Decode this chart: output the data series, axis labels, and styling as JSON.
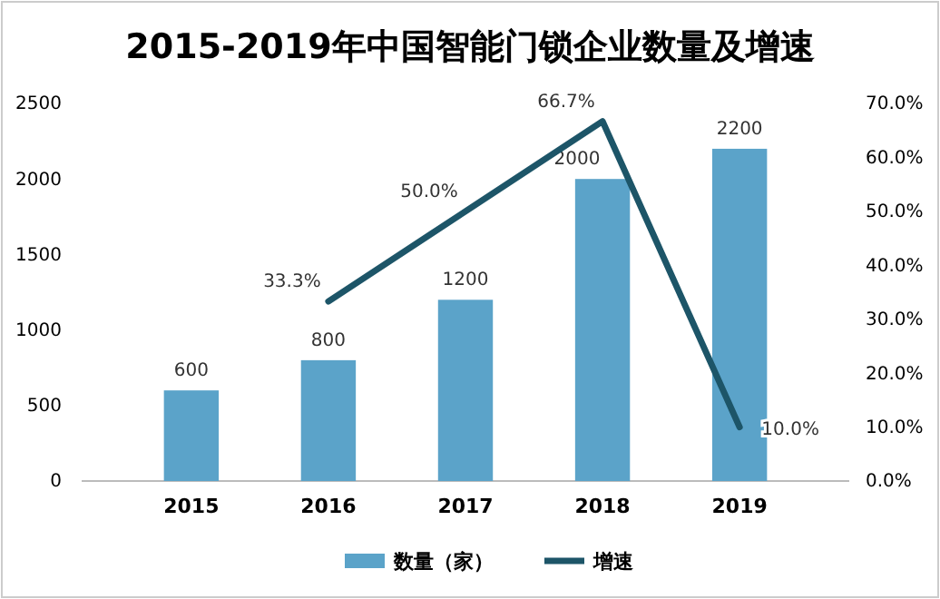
{
  "chart_data": {
    "type": "bar",
    "title": "2015-2019年中国智能门锁企业数量及增速",
    "categories": [
      "2015",
      "2016",
      "2017",
      "2018",
      "2019"
    ],
    "series": [
      {
        "name": "数量（家）",
        "color": "#5ba3c9",
        "values": [
          600,
          800,
          1200,
          2000,
          2200
        ],
        "value_labels": [
          "600",
          "800",
          "1200",
          "2000",
          "2200"
        ]
      },
      {
        "name": "增速",
        "type": "line",
        "axis": "y2",
        "color": "#1d5568",
        "values": [
          null,
          33.3,
          50.0,
          66.7,
          10.0
        ],
        "value_labels": [
          null,
          "33.3%",
          "50.0%",
          "66.7%",
          "10.0%"
        ]
      }
    ],
    "ylim": [
      0,
      2500
    ],
    "yticks": [
      0,
      500,
      1000,
      1500,
      2000,
      2500
    ],
    "y2lim": [
      0,
      70
    ],
    "y2ticks": [
      {
        "value": 0,
        "label": "0.0%"
      },
      {
        "value": 10,
        "label": "10.0%"
      },
      {
        "value": 20,
        "label": "20.0%"
      },
      {
        "value": 30,
        "label": "30.0%"
      },
      {
        "value": 40,
        "label": "40.0%"
      },
      {
        "value": 50,
        "label": "50.0%"
      },
      {
        "value": 60,
        "label": "60.0%"
      },
      {
        "value": 70,
        "label": "70.0%"
      }
    ],
    "legend": "bottom",
    "grid": false
  }
}
